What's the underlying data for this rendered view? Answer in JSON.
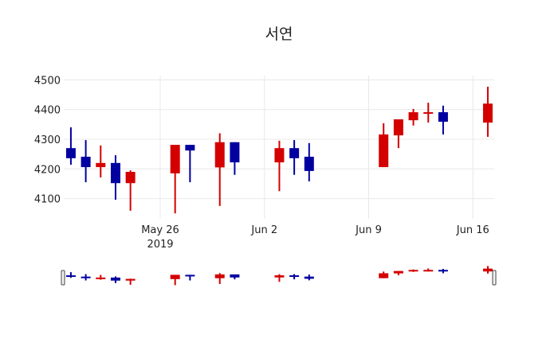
{
  "chart_data": {
    "type": "candlestick",
    "title": "서연",
    "xlabel": "",
    "ylabel": "",
    "ylim": [
      4040,
      4520
    ],
    "y_ticks": [
      4100,
      4200,
      4300,
      4400,
      4500
    ],
    "x_ticks": [
      {
        "label": "May 26",
        "sub": "2019",
        "date": "2019-05-26"
      },
      {
        "label": "Jun 2",
        "date": "2019-06-02"
      },
      {
        "label": "Jun 9",
        "date": "2019-06-09"
      },
      {
        "label": "Jun 16",
        "date": "2019-06-16"
      }
    ],
    "increasing_color": "#d40000",
    "decreasing_color": "#0000a0",
    "grid": true,
    "rangeslider": true,
    "series": [
      {
        "date": "2019-05-20",
        "open": 4270,
        "high": 4340,
        "low": 4214,
        "close": 4236
      },
      {
        "date": "2019-05-21",
        "open": 4241,
        "high": 4297,
        "low": 4155,
        "close": 4206
      },
      {
        "date": "2019-05-22",
        "open": 4206,
        "high": 4279,
        "low": 4171,
        "close": 4220
      },
      {
        "date": "2019-05-23",
        "open": 4220,
        "high": 4246,
        "low": 4096,
        "close": 4152
      },
      {
        "date": "2019-05-24",
        "open": 4152,
        "high": 4195,
        "low": 4059,
        "close": 4190
      },
      {
        "date": "2019-05-27",
        "open": 4185,
        "high": 4281,
        "low": 4050,
        "close": 4281
      },
      {
        "date": "2019-05-28",
        "open": 4281,
        "high": 4281,
        "low": 4155,
        "close": 4262
      },
      {
        "date": "2019-05-30",
        "open": 4205,
        "high": 4320,
        "low": 4075,
        "close": 4290
      },
      {
        "date": "2019-05-31",
        "open": 4290,
        "high": 4290,
        "low": 4180,
        "close": 4222
      },
      {
        "date": "2019-06-03",
        "open": 4222,
        "high": 4295,
        "low": 4125,
        "close": 4270
      },
      {
        "date": "2019-06-04",
        "open": 4270,
        "high": 4297,
        "low": 4180,
        "close": 4236
      },
      {
        "date": "2019-06-05",
        "open": 4241,
        "high": 4287,
        "low": 4158,
        "close": 4193
      },
      {
        "date": "2019-06-10",
        "open": 4206,
        "high": 4354,
        "low": 4206,
        "close": 4316
      },
      {
        "date": "2019-06-11",
        "open": 4313,
        "high": 4367,
        "low": 4270,
        "close": 4367
      },
      {
        "date": "2019-06-12",
        "open": 4364,
        "high": 4402,
        "low": 4346,
        "close": 4391
      },
      {
        "date": "2019-06-13",
        "open": 4386,
        "high": 4423,
        "low": 4356,
        "close": 4391
      },
      {
        "date": "2019-06-14",
        "open": 4391,
        "high": 4413,
        "low": 4316,
        "close": 4359
      },
      {
        "date": "2019-06-17",
        "open": 4356,
        "high": 4477,
        "low": 4308,
        "close": 4420
      }
    ]
  }
}
